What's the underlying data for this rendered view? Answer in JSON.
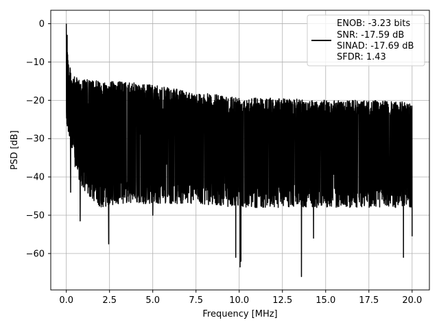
{
  "chart_data": {
    "type": "line",
    "title": "",
    "xlabel": "Frequency [MHz]",
    "ylabel": "PSD [dB]",
    "xlim": [
      -0.9,
      21.0
    ],
    "ylim": [
      -69.5,
      3.5
    ],
    "grid": true,
    "legend_placement": "top-right",
    "x_ticks": [
      0.0,
      2.5,
      5.0,
      7.5,
      10.0,
      12.5,
      15.0,
      17.5,
      20.0
    ],
    "x_tick_labels": [
      "0.0",
      "2.5",
      "5.0",
      "7.5",
      "10.0",
      "12.5",
      "15.0",
      "17.5",
      "20.0"
    ],
    "y_ticks": [
      0,
      -10,
      -20,
      -30,
      -40,
      -50,
      -60
    ],
    "y_tick_labels": [
      "0",
      "−10",
      "−20",
      "−30",
      "−40",
      "−50",
      "−60"
    ],
    "series": [
      {
        "color": "#000000",
        "envelope": [
          {
            "x": 0.0,
            "upper": 0,
            "lower": -29
          },
          {
            "x": 0.05,
            "upper": -3,
            "lower": -28
          },
          {
            "x": 0.1,
            "upper": -9,
            "lower": -29
          },
          {
            "x": 0.2,
            "upper": -11,
            "lower": -30
          },
          {
            "x": 0.3,
            "upper": -13,
            "lower": -34
          },
          {
            "x": 0.5,
            "upper": -14,
            "lower": -38
          },
          {
            "x": 1.0,
            "upper": -14.5,
            "lower": -44
          },
          {
            "x": 2.0,
            "upper": -15,
            "lower": -48
          },
          {
            "x": 3.0,
            "upper": -15,
            "lower": -47
          },
          {
            "x": 5.0,
            "upper": -16,
            "lower": -47
          },
          {
            "x": 7.5,
            "upper": -18,
            "lower": -47
          },
          {
            "x": 10.0,
            "upper": -19,
            "lower": -48
          },
          {
            "x": 12.5,
            "upper": -19.5,
            "lower": -48
          },
          {
            "x": 15.0,
            "upper": -20,
            "lower": -48
          },
          {
            "x": 17.5,
            "upper": -20,
            "lower": -48
          },
          {
            "x": 20.0,
            "upper": -20.5,
            "lower": -48
          }
        ],
        "notable_minima": [
          {
            "x": 0.25,
            "y": -44
          },
          {
            "x": 0.8,
            "y": -51.5
          },
          {
            "x": 2.45,
            "y": -57.5
          },
          {
            "x": 5.0,
            "y": -50
          },
          {
            "x": 9.8,
            "y": -61
          },
          {
            "x": 10.05,
            "y": -63.5
          },
          {
            "x": 10.1,
            "y": -62
          },
          {
            "x": 13.6,
            "y": -66
          },
          {
            "x": 14.3,
            "y": -56
          },
          {
            "x": 19.5,
            "y": -61
          },
          {
            "x": 20.0,
            "y": -55.5
          }
        ],
        "notable_maxima": [
          {
            "x": 0.0,
            "y": 0
          },
          {
            "x": 0.05,
            "y": -3
          }
        ]
      }
    ]
  },
  "legend": {
    "lines": [
      "ENOB: -3.23 bits",
      "SNR: -17.59 dB",
      "SINAD: -17.69 dB",
      "SFDR: 1.43"
    ]
  }
}
